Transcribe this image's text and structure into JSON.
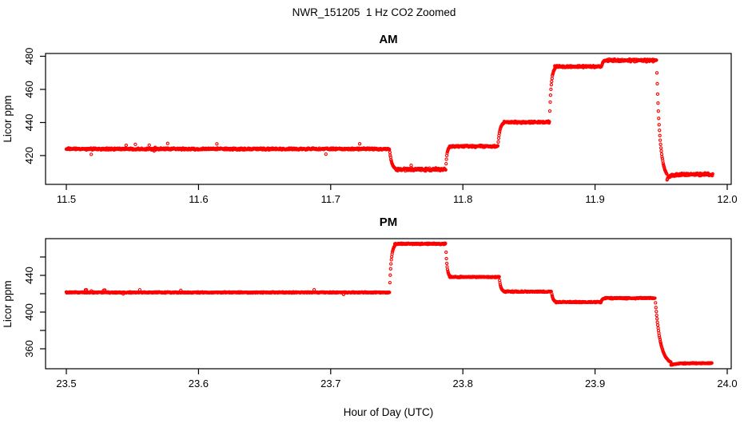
{
  "title": "NWR_151205  1 Hz CO2 Zoomed",
  "xlabel": "Hour of Day (UTC)",
  "colors": {
    "series": "#FF0000",
    "axis": "#000000",
    "text": "#000000",
    "background": "#FFFFFF"
  },
  "marker": "open-circle",
  "sample_rate_hz": 1,
  "chart_data": [
    {
      "type": "scatter",
      "panel_title": "AM",
      "ylabel": "Licor ppm",
      "xlabel": "",
      "x_ticks": [
        11.5,
        11.6,
        11.7,
        11.8,
        11.9,
        12.0
      ],
      "y_ticks_labeled": [
        420,
        440,
        460,
        480
      ],
      "y_ticks_unlabeled": [],
      "xlim": [
        11.4843,
        12.003
      ],
      "ylim": [
        402.6,
        481.7
      ],
      "grid": false,
      "legend": null,
      "segments": [
        {
          "t0": 11.5,
          "t1": 11.7445,
          "v": 424.0,
          "noise": 0.55,
          "spikes": true
        },
        {
          "t0": 11.7495,
          "t1": 11.787,
          "v": 411.6,
          "noise": 0.85,
          "spikes": true
        },
        {
          "t0": 11.79,
          "t1": 11.8265,
          "v": 425.6,
          "noise": 0.55
        },
        {
          "t0": 11.831,
          "t1": 11.8655,
          "v": 440.2,
          "noise": 0.6
        },
        {
          "t0": 11.8695,
          "t1": 11.905,
          "v": 473.8,
          "noise": 0.6
        },
        {
          "t0": 11.9075,
          "t1": 11.9465,
          "v": 477.5,
          "noise": 0.8
        },
        {
          "t0": 11.9545,
          "t1": 11.989,
          "v": 408.6,
          "noise": 0.75,
          "settle_from": 405.8,
          "settle_tau": 0.0022
        }
      ]
    },
    {
      "type": "scatter",
      "panel_title": "PM",
      "ylabel": "Licor ppm",
      "xlabel": "Hour of Day (UTC)",
      "x_ticks": [
        23.5,
        23.6,
        23.7,
        23.8,
        23.9,
        24.0
      ],
      "y_ticks_labeled": [
        360,
        400,
        440
      ],
      "y_ticks_unlabeled": [
        380,
        420,
        460
      ],
      "xlim": [
        23.4843,
        24.003
      ],
      "ylim": [
        338.3,
        480.0
      ],
      "grid": false,
      "legend": null,
      "segments": [
        {
          "t0": 23.5,
          "t1": 23.7445,
          "v": 421.4,
          "noise": 0.55,
          "spikes": true
        },
        {
          "t0": 23.7485,
          "t1": 23.787,
          "v": 474.4,
          "noise": 0.7
        },
        {
          "t0": 23.79,
          "t1": 23.8275,
          "v": 438.2,
          "noise": 0.6
        },
        {
          "t0": 23.831,
          "t1": 23.867,
          "v": 422.3,
          "noise": 0.6
        },
        {
          "t0": 23.8705,
          "t1": 23.9045,
          "v": 410.9,
          "noise": 0.6
        },
        {
          "t0": 23.9075,
          "t1": 23.9455,
          "v": 415.2,
          "noise": 0.6
        },
        {
          "t0": 23.9575,
          "t1": 23.9885,
          "v": 344.3,
          "noise": 0.6,
          "settle_from": 342.4,
          "settle_tau": 0.004
        }
      ]
    }
  ]
}
